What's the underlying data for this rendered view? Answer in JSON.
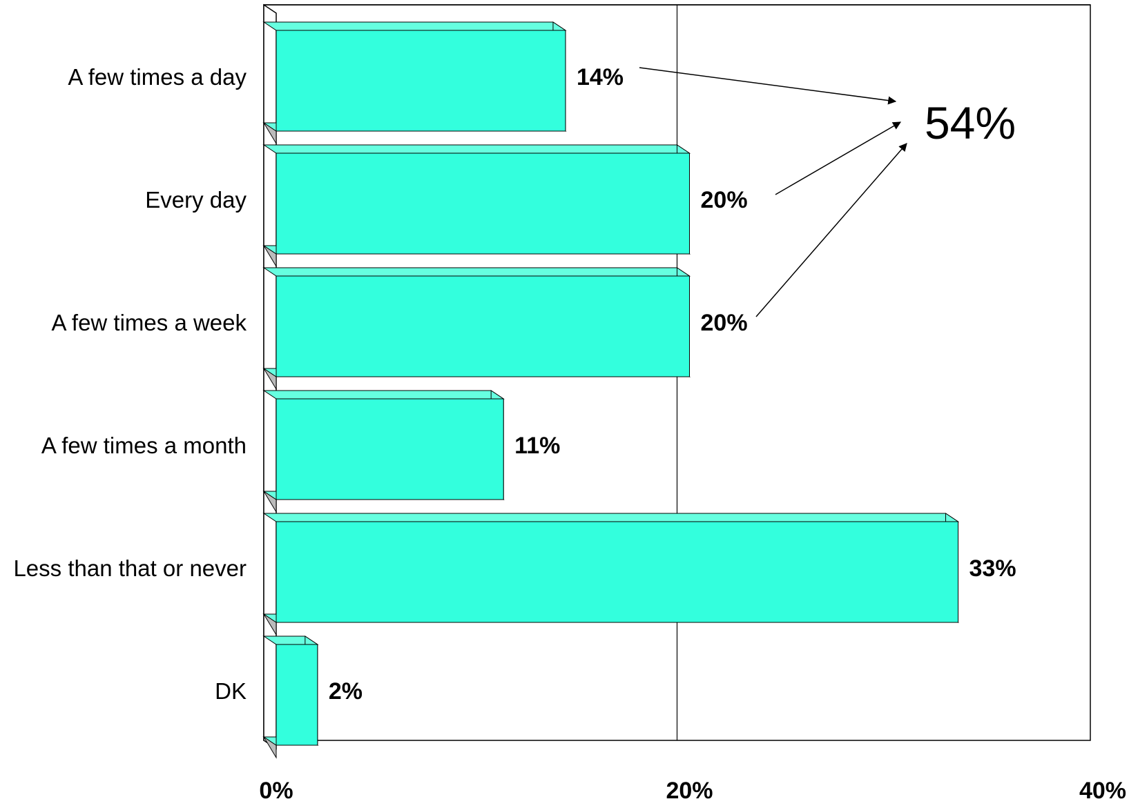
{
  "chart_data": {
    "type": "bar",
    "orientation": "horizontal",
    "categories": [
      "A few times a day",
      "Every day",
      "A few times a week",
      "A few times a month",
      "Less than that or never",
      "DK"
    ],
    "values": [
      14,
      20,
      20,
      11,
      33,
      2
    ],
    "value_labels": [
      "14%",
      "20%",
      "20%",
      "11%",
      "33%",
      "2%"
    ],
    "x_ticks": [
      0,
      20,
      40
    ],
    "x_tick_labels": [
      "0%",
      "20%",
      "40%"
    ],
    "xlim": [
      0,
      40
    ],
    "title": "",
    "xlabel": "",
    "ylabel": "",
    "grid": true,
    "legend": "none",
    "bar_color": "#33FFDD",
    "bar_side_color": "#66FFE0",
    "annotation": {
      "text": "54%",
      "points_from": [
        "A few times a day",
        "Every day",
        "A few times a week"
      ]
    }
  }
}
